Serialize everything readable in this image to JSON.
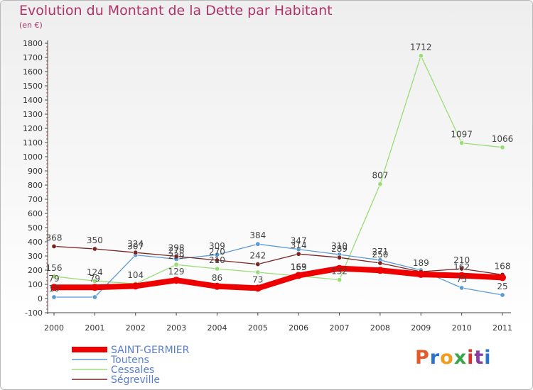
{
  "header": {
    "title": "Evolution du Montant de la Dette par Habitant",
    "subtitle": "(en €)"
  },
  "logo": {
    "text": "Proxiti",
    "colors": [
      "#e05a2b",
      "#2b73c9",
      "#f29c1f",
      "#3aa64a",
      "#d8342c",
      "#8a3fa0",
      "#2b73c9"
    ]
  },
  "chart_data": {
    "type": "line",
    "x": [
      "2000",
      "2001",
      "2002",
      "2003",
      "2004",
      "2005",
      "2006",
      "2007",
      "2008",
      "2009",
      "2010",
      "2011"
    ],
    "ylim": [
      -100,
      1800
    ],
    "yticks": [
      -100,
      0,
      100,
      200,
      300,
      400,
      500,
      600,
      700,
      800,
      900,
      1000,
      1100,
      1200,
      1300,
      1400,
      1500,
      1600,
      1700,
      1800
    ],
    "grid": false,
    "legend_position": "bottom-left",
    "series": [
      {
        "name": "SAINT-GERMIER",
        "color": "#ee0000",
        "values": [
          79,
          79,
          88,
          129,
          86,
          73,
          163,
          212,
          199,
          170,
          162,
          148
        ],
        "labels": [
          "79",
          "79",
          "",
          "129",
          "86",
          "73",
          "163",
          "",
          "",
          "",
          "162",
          ""
        ]
      },
      {
        "name": "Toutens",
        "color": "#5b9bd5",
        "values": [
          10,
          10,
          307,
          278,
          309,
          384,
          347,
          310,
          271,
          200,
          75,
          25
        ],
        "labels": [
          "10",
          "",
          "307",
          "278",
          "309",
          "384",
          "347",
          "310",
          "271",
          "",
          "75",
          "25"
        ]
      },
      {
        "name": "Cessales",
        "color": "#99dd77",
        "values": [
          156,
          124,
          104,
          239,
          210,
          185,
          159,
          132,
          807,
          1712,
          1097,
          1066
        ],
        "labels": [
          "156",
          "124",
          "104",
          "239",
          "210",
          "",
          "159",
          "132",
          "807",
          "1712",
          "1097",
          "1066"
        ]
      },
      {
        "name": "Ségreville",
        "color": "#7a2424",
        "values": [
          368,
          350,
          324,
          298,
          270,
          242,
          314,
          289,
          250,
          189,
          210,
          168
        ],
        "labels": [
          "368",
          "350",
          "324",
          "298",
          "270",
          "242",
          "314",
          "289",
          "250",
          "189",
          "210",
          "168"
        ]
      }
    ]
  }
}
